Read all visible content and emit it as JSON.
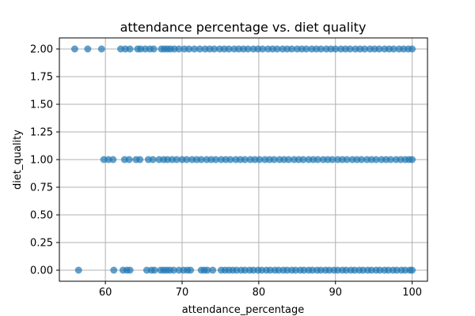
{
  "chart_data": {
    "type": "scatter",
    "title": "attendance percentage vs. diet quality",
    "xlabel": "attendance_percentage",
    "ylabel": "diet_quality",
    "xlim": [
      54,
      102
    ],
    "ylim": [
      -0.1,
      2.1
    ],
    "xticks": [
      60,
      70,
      80,
      90,
      100
    ],
    "xtick_labels": [
      "60",
      "70",
      "80",
      "90",
      "100"
    ],
    "yticks": [
      0,
      0.25,
      0.5,
      0.75,
      1.0,
      1.25,
      1.5,
      1.75,
      2.0
    ],
    "ytick_labels": [
      "0.00",
      "0.25",
      "0.50",
      "0.75",
      "1.00",
      "1.25",
      "1.50",
      "1.75",
      "2.00"
    ],
    "grid": true,
    "marker_color": "#1f77b4",
    "marker_alpha": 0.7,
    "series": [
      {
        "name": "diet_quality = 2",
        "y": 2,
        "x": [
          56.0,
          57.7,
          59.5,
          62.0,
          62.6,
          63.2,
          64.2,
          64.6,
          65.2,
          65.8,
          66.3,
          67.3,
          67.7,
          68.1,
          68.5,
          69.0,
          69.6,
          70.3,
          70.9,
          71.6,
          72.3,
          73.0,
          73.6,
          74.2,
          74.9,
          75.5,
          76.1,
          76.8,
          77.4,
          78.0,
          78.6,
          79.3,
          79.9,
          80.5,
          81.2,
          81.8,
          82.4,
          83.1,
          83.7,
          84.3,
          85.0,
          85.6,
          86.2,
          86.9,
          87.5,
          88.1,
          88.8,
          89.4,
          90.0,
          90.7,
          91.3,
          91.9,
          92.6,
          93.2,
          93.8,
          94.5,
          95.1,
          95.7,
          96.4,
          97.0,
          97.6,
          98.3,
          98.9,
          99.5,
          100.0
        ]
      },
      {
        "name": "diet_quality = 1",
        "y": 1,
        "x": [
          59.8,
          60.4,
          61.0,
          62.5,
          63.1,
          64.0,
          64.5,
          65.6,
          66.2,
          67.0,
          67.6,
          68.1,
          68.7,
          69.3,
          70.0,
          70.6,
          71.3,
          71.9,
          72.5,
          73.2,
          73.8,
          74.4,
          75.1,
          75.7,
          76.3,
          77.0,
          77.6,
          78.2,
          78.9,
          79.5,
          80.1,
          80.8,
          81.4,
          82.0,
          82.7,
          83.3,
          83.9,
          84.6,
          85.2,
          85.8,
          86.5,
          87.1,
          87.7,
          88.4,
          89.0,
          89.6,
          90.3,
          90.9,
          91.5,
          92.2,
          92.8,
          93.4,
          94.1,
          94.7,
          95.3,
          96.0,
          96.6,
          97.2,
          97.9,
          98.5,
          99.1,
          99.6,
          100.0
        ]
      },
      {
        "name": "diet_quality = 0",
        "y": 0,
        "x": [
          56.5,
          61.1,
          62.3,
          62.8,
          63.2,
          65.4,
          66.0,
          66.4,
          67.2,
          67.6,
          68.0,
          68.4,
          68.9,
          69.6,
          70.2,
          70.7,
          71.1,
          72.5,
          72.9,
          73.3,
          74.0,
          75.1,
          75.6,
          76.1,
          76.6,
          77.1,
          77.7,
          78.2,
          78.8,
          79.3,
          79.9,
          80.4,
          81.0,
          81.5,
          82.1,
          82.6,
          83.2,
          83.7,
          84.3,
          84.8,
          85.4,
          85.9,
          86.5,
          87.0,
          87.6,
          88.1,
          88.7,
          89.2,
          89.8,
          90.3,
          90.9,
          91.4,
          92.0,
          92.5,
          93.1,
          93.6,
          94.2,
          94.7,
          95.3,
          95.8,
          96.4,
          96.9,
          97.5,
          98.0,
          98.6,
          99.1,
          99.7,
          100.0
        ]
      }
    ]
  }
}
